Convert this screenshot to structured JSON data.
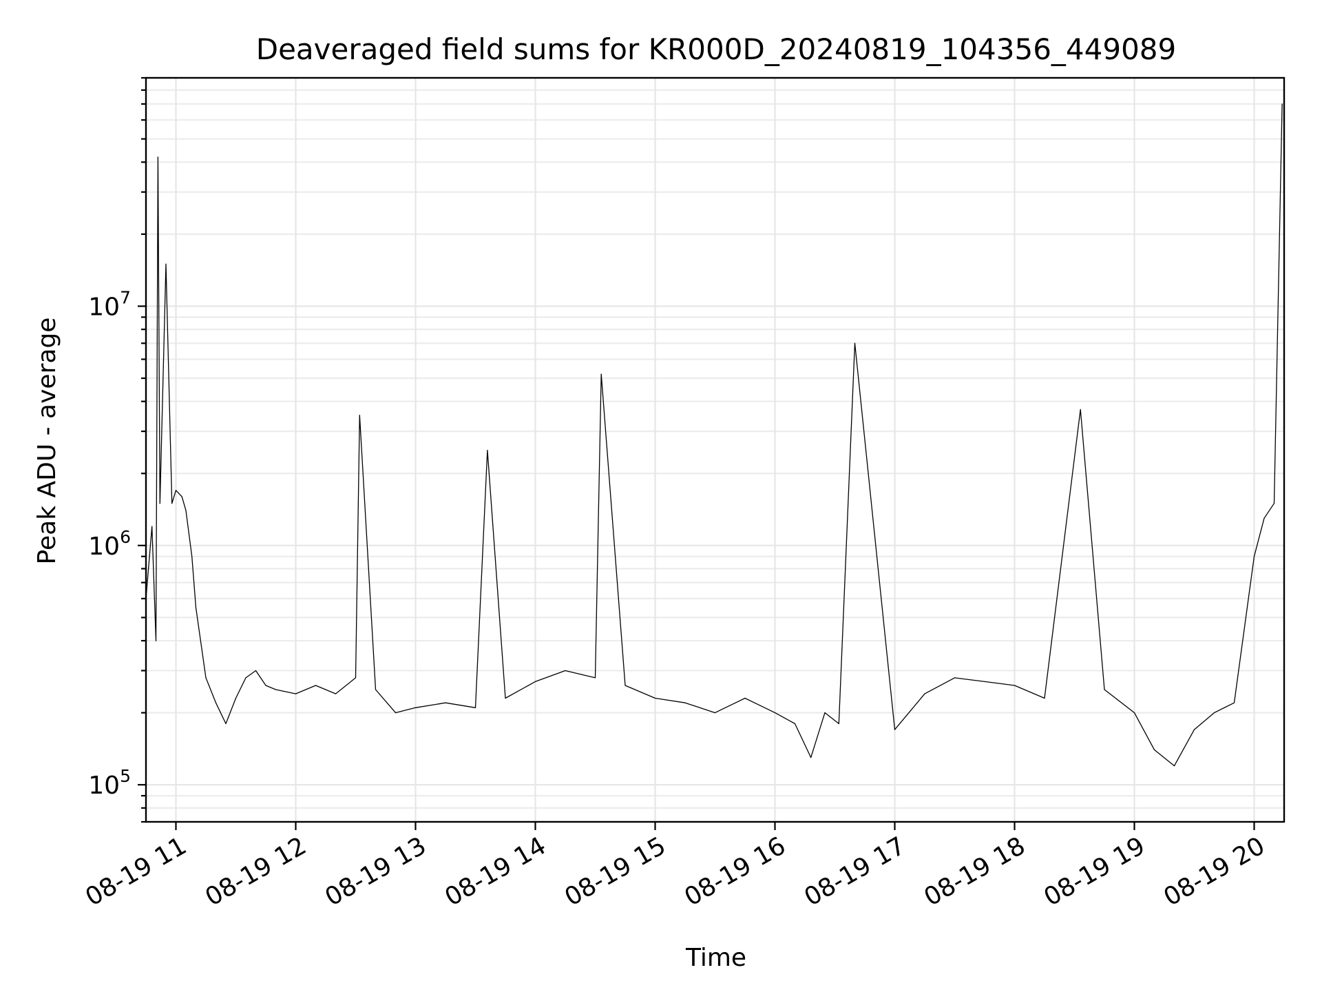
{
  "chart_data": {
    "type": "line",
    "title": "Deaveraged field sums for KR000D_20240819_104356_449089",
    "xlabel": "Time",
    "ylabel": "Peak ADU - average",
    "yscale": "log",
    "xlim": [
      "2024-08-19 10:45",
      "2024-08-19 20:15"
    ],
    "ylim": [
      70000,
      90000000
    ],
    "grid": true,
    "legend": "none",
    "line_color": "#000000",
    "x_ticks": [
      {
        "value": "2024-08-19 11:00",
        "label": "08-19 11"
      },
      {
        "value": "2024-08-19 12:00",
        "label": "08-19 12"
      },
      {
        "value": "2024-08-19 13:00",
        "label": "08-19 13"
      },
      {
        "value": "2024-08-19 14:00",
        "label": "08-19 14"
      },
      {
        "value": "2024-08-19 15:00",
        "label": "08-19 15"
      },
      {
        "value": "2024-08-19 16:00",
        "label": "08-19 16"
      },
      {
        "value": "2024-08-19 17:00",
        "label": "08-19 17"
      },
      {
        "value": "2024-08-19 18:00",
        "label": "08-19 18"
      },
      {
        "value": "2024-08-19 19:00",
        "label": "08-19 19"
      },
      {
        "value": "2024-08-19 20:00",
        "label": "08-19 20"
      }
    ],
    "y_ticks": [
      {
        "value": 100000,
        "base": "10",
        "exp": "5"
      },
      {
        "value": 1000000,
        "base": "10",
        "exp": "6"
      },
      {
        "value": 10000000,
        "base": "10",
        "exp": "7"
      }
    ],
    "series": [
      {
        "x": [
          "2024-08-19 10:45",
          "2024-08-19 10:48",
          "2024-08-19 10:50",
          "2024-08-19 10:51",
          "2024-08-19 10:52",
          "2024-08-19 10:55",
          "2024-08-19 10:58",
          "2024-08-19 11:00",
          "2024-08-19 11:03",
          "2024-08-19 11:05",
          "2024-08-19 11:08",
          "2024-08-19 11:10",
          "2024-08-19 11:15",
          "2024-08-19 11:20",
          "2024-08-19 11:25",
          "2024-08-19 11:30",
          "2024-08-19 11:35",
          "2024-08-19 11:40",
          "2024-08-19 11:45",
          "2024-08-19 11:50",
          "2024-08-19 12:00",
          "2024-08-19 12:10",
          "2024-08-19 12:20",
          "2024-08-19 12:30",
          "2024-08-19 12:32",
          "2024-08-19 12:40",
          "2024-08-19 12:50",
          "2024-08-19 13:00",
          "2024-08-19 13:15",
          "2024-08-19 13:30",
          "2024-08-19 13:36",
          "2024-08-19 13:45",
          "2024-08-19 14:00",
          "2024-08-19 14:15",
          "2024-08-19 14:30",
          "2024-08-19 14:33",
          "2024-08-19 14:45",
          "2024-08-19 15:00",
          "2024-08-19 15:15",
          "2024-08-19 15:30",
          "2024-08-19 15:45",
          "2024-08-19 16:00",
          "2024-08-19 16:10",
          "2024-08-19 16:18",
          "2024-08-19 16:25",
          "2024-08-19 16:32",
          "2024-08-19 16:40",
          "2024-08-19 17:00",
          "2024-08-19 17:15",
          "2024-08-19 17:30",
          "2024-08-19 17:45",
          "2024-08-19 18:00",
          "2024-08-19 18:15",
          "2024-08-19 18:33",
          "2024-08-19 18:45",
          "2024-08-19 19:00",
          "2024-08-19 19:10",
          "2024-08-19 19:20",
          "2024-08-19 19:30",
          "2024-08-19 19:40",
          "2024-08-19 19:50",
          "2024-08-19 20:00",
          "2024-08-19 20:05",
          "2024-08-19 20:10",
          "2024-08-19 20:14"
        ],
        "y": [
          600000,
          1200000,
          400000,
          42000000,
          1500000,
          15000000,
          1500000,
          1700000,
          1600000,
          1400000,
          900000,
          550000,
          280000,
          220000,
          180000,
          230000,
          280000,
          300000,
          260000,
          250000,
          240000,
          260000,
          240000,
          280000,
          3500000,
          250000,
          200000,
          210000,
          220000,
          210000,
          2500000,
          230000,
          270000,
          300000,
          280000,
          5200000,
          260000,
          230000,
          220000,
          200000,
          230000,
          200000,
          180000,
          130000,
          200000,
          180000,
          7000000,
          170000,
          240000,
          280000,
          270000,
          260000,
          230000,
          3700000,
          250000,
          200000,
          140000,
          120000,
          170000,
          200000,
          220000,
          900000,
          1300000,
          1500000,
          70000000
        ]
      }
    ],
    "notes": "Dense time series with many narrow upward spikes; representative sampled values read from the plot."
  }
}
